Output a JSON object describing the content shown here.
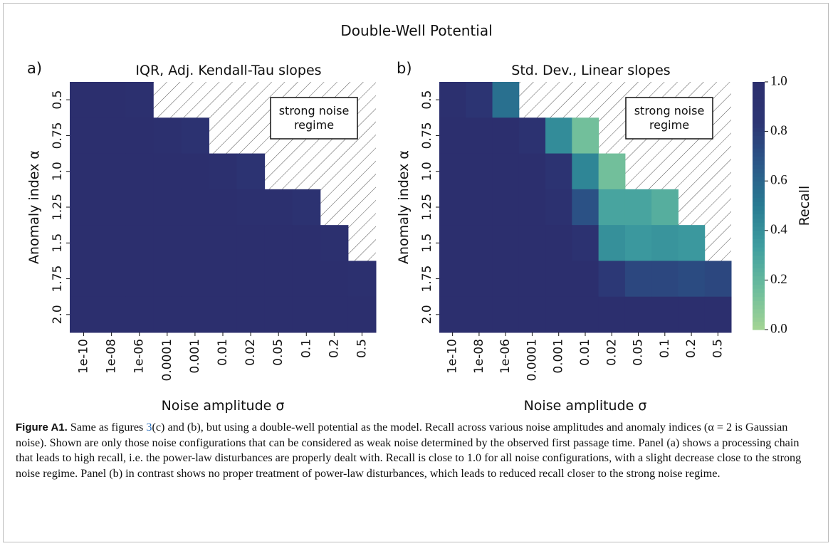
{
  "figure": {
    "title": "Double-Well Potential"
  },
  "chart_data": [
    {
      "type": "heatmap",
      "panel_label": "a)",
      "title": "IQR, Adj. Kendall-Tau slopes",
      "x_label": "Noise amplitude σ",
      "y_label": "Anomaly index α",
      "x": [
        "1e-10",
        "1e-08",
        "1e-06",
        "0.0001",
        "0.001",
        "0.01",
        "0.02",
        "0.05",
        "0.1",
        "0.2",
        "0.5"
      ],
      "y": [
        "0.5",
        "0.75",
        "1.0",
        "1.25",
        "1.5",
        "1.75",
        "2.0"
      ],
      "values": [
        [
          0.99,
          0.99,
          0.96,
          null,
          null,
          null,
          null,
          null,
          null,
          null,
          null
        ],
        [
          1.0,
          1.0,
          1.0,
          0.96,
          0.92,
          null,
          null,
          null,
          null,
          null,
          null
        ],
        [
          1.0,
          1.0,
          1.0,
          1.0,
          1.0,
          0.96,
          0.9,
          null,
          null,
          null,
          null
        ],
        [
          1.0,
          1.0,
          1.0,
          1.0,
          1.0,
          1.0,
          0.98,
          0.97,
          0.93,
          null,
          null
        ],
        [
          1.0,
          1.0,
          1.0,
          1.0,
          1.0,
          1.0,
          1.0,
          1.0,
          0.99,
          0.97,
          null
        ],
        [
          1.0,
          1.0,
          1.0,
          1.0,
          1.0,
          1.0,
          1.0,
          1.0,
          1.0,
          0.99,
          0.96
        ],
        [
          1.0,
          1.0,
          1.0,
          1.0,
          1.0,
          1.0,
          1.0,
          1.0,
          1.0,
          1.0,
          1.0
        ]
      ],
      "annotation": "strong noise\nregime",
      "vlim": [
        0,
        1
      ],
      "colormap": [
        "#a4d494",
        "#6cbd9c",
        "#3f9ea0",
        "#287b92",
        "#2b5889",
        "#2c3574",
        "#2c2f6e"
      ]
    },
    {
      "type": "heatmap",
      "panel_label": "b)",
      "title": "Std. Dev., Linear slopes",
      "x_label": "Noise amplitude σ",
      "y_label": "Anomaly index α",
      "x": [
        "1e-10",
        "1e-08",
        "1e-06",
        "0.0001",
        "0.001",
        "0.01",
        "0.02",
        "0.05",
        "0.1",
        "0.2",
        "0.5"
      ],
      "y": [
        "0.5",
        "0.75",
        "1.0",
        "1.25",
        "1.5",
        "1.75",
        "2.0"
      ],
      "values": [
        [
          0.96,
          0.86,
          0.55,
          null,
          null,
          null,
          null,
          null,
          null,
          null,
          null
        ],
        [
          1.0,
          1.0,
          1.0,
          0.92,
          0.42,
          0.15,
          null,
          null,
          null,
          null,
          null
        ],
        [
          1.0,
          1.0,
          1.0,
          1.0,
          0.9,
          0.45,
          0.15,
          null,
          null,
          null,
          null
        ],
        [
          1.0,
          1.0,
          1.0,
          1.0,
          0.95,
          0.7,
          0.3,
          0.3,
          0.25,
          null,
          null
        ],
        [
          1.0,
          1.0,
          1.0,
          1.0,
          1.0,
          0.93,
          0.4,
          0.36,
          0.38,
          0.36,
          null
        ],
        [
          1.0,
          1.0,
          1.0,
          1.0,
          1.0,
          1.0,
          0.82,
          0.75,
          0.75,
          0.73,
          0.75
        ],
        [
          1.0,
          1.0,
          1.0,
          1.0,
          1.0,
          1.0,
          1.0,
          1.0,
          1.0,
          1.0,
          1.0
        ]
      ],
      "annotation": "strong noise\nregime",
      "vlim": [
        0,
        1
      ],
      "colormap": [
        "#a4d494",
        "#6cbd9c",
        "#3f9ea0",
        "#287b92",
        "#2b5889",
        "#2c3574",
        "#2c2f6e"
      ],
      "colorbar_label": "Recall",
      "colorbar_ticks": [
        {
          "value": 0,
          "label": "0.0"
        },
        {
          "value": 0.2,
          "label": "0.2"
        },
        {
          "value": 0.4,
          "label": "0.4"
        },
        {
          "value": 0.6,
          "label": "0.6"
        },
        {
          "value": 0.8,
          "label": "0.8"
        },
        {
          "value": 1,
          "label": "1.0"
        }
      ]
    }
  ],
  "caption": {
    "label": "Figure A1.",
    "text1": " Same as figures ",
    "ref": "3",
    "text2": "(c) and (b), but using a double-well potential as the model. Recall across various noise amplitudes and anomaly indices (α = 2 is Gaussian noise). Shown are only those noise configurations that can be considered as weak noise determined by the observed first passage time. Panel (a) shows a processing chain that leads to high recall, i.e. the power-law disturbances are properly dealt with. Recall is close to 1.0 for all noise configurations, with a slight decrease close to the strong noise regime. Panel (b) in contrast shows no proper treatment of power-law disturbances, which leads to reduced recall closer to the strong noise regime."
  }
}
